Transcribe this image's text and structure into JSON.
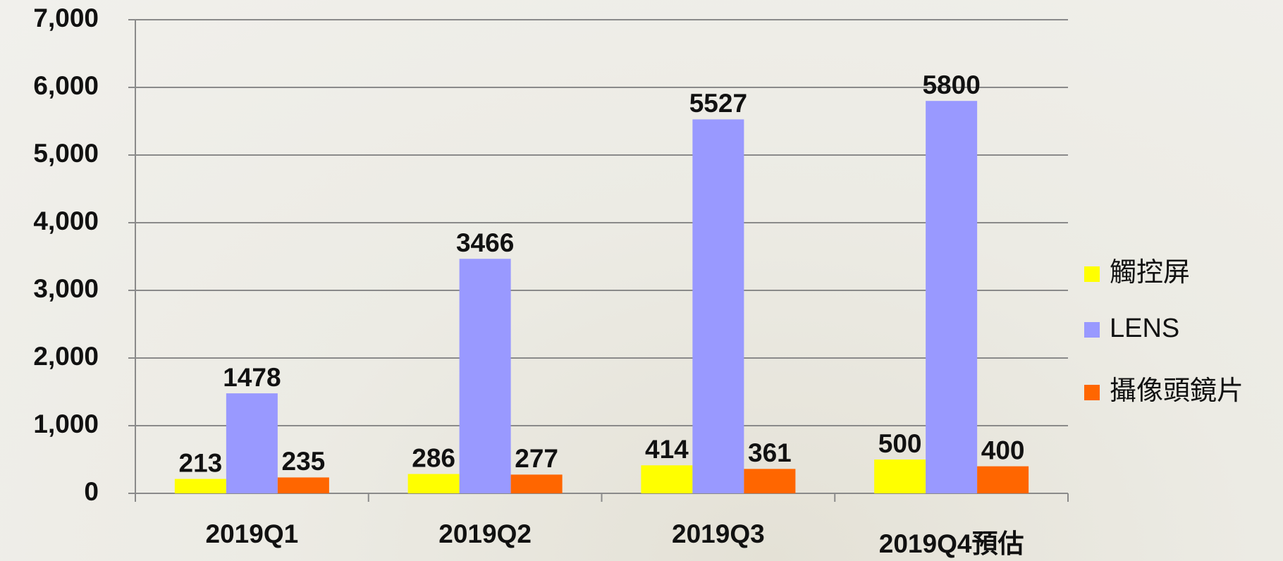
{
  "chart_data": {
    "type": "bar",
    "categories": [
      "2019Q1",
      "2019Q2",
      "2019Q3",
      "2019Q4預估"
    ],
    "series": [
      {
        "name": "觸控屏",
        "color": "#ffff00",
        "values": [
          213,
          286,
          414,
          500
        ]
      },
      {
        "name": "LENS",
        "color": "#9999ff",
        "values": [
          1478,
          3466,
          5527,
          5800
        ]
      },
      {
        "name": "攝像頭鏡片",
        "color": "#ff6600",
        "values": [
          235,
          277,
          361,
          400
        ]
      }
    ],
    "ylim": [
      0,
      7000
    ],
    "yticks": [
      0,
      {
        "value": 1000,
        "label": "1,000"
      },
      {
        "value": 2000,
        "label": "2,000"
      },
      {
        "value": 3000,
        "label": "3,000"
      },
      {
        "value": 4000,
        "label": "4,000"
      },
      {
        "value": 5000,
        "label": "5,000"
      },
      {
        "value": 6000,
        "label": "6,000"
      },
      {
        "value": 7000,
        "label": "7,000"
      }
    ],
    "grid": true,
    "legend": "right"
  }
}
